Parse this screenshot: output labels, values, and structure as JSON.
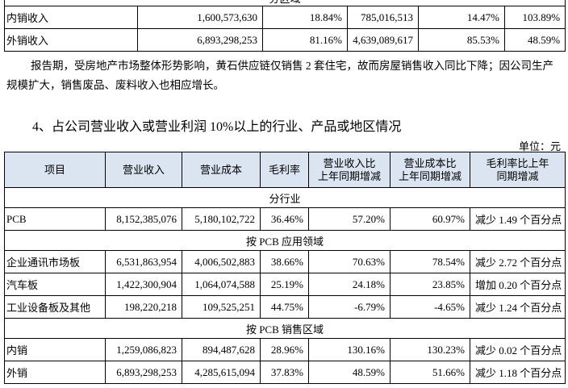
{
  "top_table": {
    "section": "分区域",
    "rows": [
      [
        "内销收入",
        "1,600,573,630",
        "18.84%",
        "785,016,513",
        "14.47%",
        "103.89%"
      ],
      [
        "外销收入",
        "6,893,298,253",
        "81.16%",
        "4,639,089,617",
        "85.53%",
        "48.59%"
      ]
    ]
  },
  "paragraph": "报告期，受房地产市场整体形势影响，黄石供应链仅销售 2 套住宅，故而房屋销售收入同比下降；因公司生产规模扩大，销售废品、废料收入也相应增长。",
  "heading": "4、占公司营业收入或营业利润 10%以上的行业、产品或地区情况",
  "unit": "单位：元",
  "table": {
    "header": [
      [
        "项目"
      ],
      [
        "营业收入"
      ],
      [
        "营业成本"
      ],
      [
        "毛利率"
      ],
      [
        "营业收入比",
        "上年同期增减"
      ],
      [
        "营业成本比",
        "上年同期增减"
      ],
      [
        "毛利率比上年",
        "同期增减"
      ]
    ],
    "groups": [
      {
        "title": "分行业",
        "rows": [
          [
            "PCB",
            "8,152,385,076",
            "5,180,102,722",
            "36.46%",
            "57.20%",
            "60.97%",
            "减少 1.49 个百分点"
          ]
        ]
      },
      {
        "title": "按 PCB 应用领域",
        "rows": [
          [
            "企业通讯市场板",
            "6,531,863,954",
            "4,006,502,883",
            "38.66%",
            "70.63%",
            "78.54%",
            "减少 2.72 个百分点"
          ],
          [
            "汽车板",
            "1,422,300,904",
            "1,064,074,588",
            "25.19%",
            "24.18%",
            "23.85%",
            "增加 0.20 个百分点"
          ],
          [
            "工业设备板及其他",
            "198,220,218",
            "109,525,251",
            "44.75%",
            "-6.79%",
            "-4.65%",
            "减少 1.24 个百分点"
          ]
        ]
      },
      {
        "title": "按 PCB 销售区域",
        "rows": [
          [
            "内销",
            "1,259,086,823",
            "894,487,628",
            "28.96%",
            "130.16%",
            "130.23%",
            "减少 0.02 个百分点"
          ],
          [
            "外销",
            "6,893,298,253",
            "4,285,615,094",
            "37.83%",
            "48.59%",
            "51.66%",
            "减少 1.18 个百分点"
          ]
        ]
      }
    ]
  }
}
